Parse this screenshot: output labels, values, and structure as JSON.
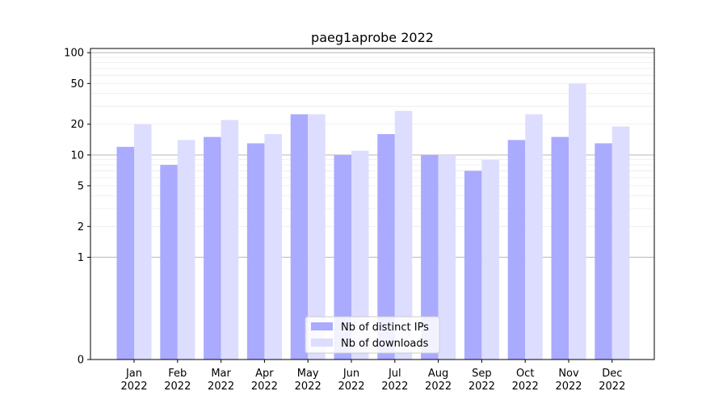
{
  "chart_data": {
    "type": "bar",
    "title": "paeg1aprobe 2022",
    "xlabel": "",
    "ylabel": "",
    "yscale": "symlog",
    "ylim": [
      0,
      110
    ],
    "yticks": [
      0,
      1,
      2,
      5,
      10,
      20,
      50,
      100
    ],
    "ytick_labels": [
      "0",
      "1",
      "2",
      "5",
      "10",
      "20",
      "50",
      "100"
    ],
    "categories": [
      [
        "Jan",
        "2022"
      ],
      [
        "Feb",
        "2022"
      ],
      [
        "Mar",
        "2022"
      ],
      [
        "Apr",
        "2022"
      ],
      [
        "May",
        "2022"
      ],
      [
        "Jun",
        "2022"
      ],
      [
        "Jul",
        "2022"
      ],
      [
        "Aug",
        "2022"
      ],
      [
        "Sep",
        "2022"
      ],
      [
        "Oct",
        "2022"
      ],
      [
        "Nov",
        "2022"
      ],
      [
        "Dec",
        "2022"
      ]
    ],
    "series": [
      {
        "name": "Nb of distinct IPs",
        "color": "#aaaaff",
        "values": [
          12,
          8,
          15,
          13,
          25,
          10,
          16,
          10,
          7,
          14,
          15,
          13
        ]
      },
      {
        "name": "Nb of downloads",
        "color": "#ddddff",
        "values": [
          20,
          14,
          22,
          16,
          25,
          11,
          27,
          10,
          9,
          25,
          50,
          19
        ]
      }
    ],
    "grid": true,
    "legend_position": "bottom-center"
  }
}
